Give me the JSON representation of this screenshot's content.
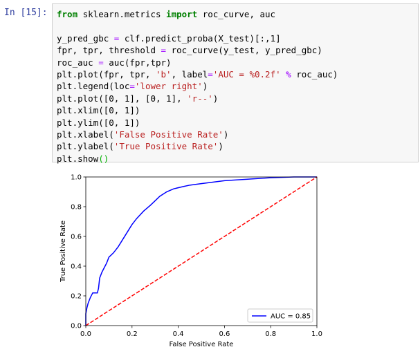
{
  "prompt": "In [15]:",
  "code": {
    "lines": [
      [
        {
          "text": "from",
          "color": "#008000",
          "bold": true
        },
        " sklearn.metrics ",
        {
          "text": "import",
          "color": "#008000",
          "bold": true
        },
        " roc_curve, auc"
      ],
      [],
      [
        "y_pred_gbc ",
        {
          "text": "=",
          "color": "#AA22FF"
        },
        " clf.predict_proba(X_test)[:,1]"
      ],
      [
        "fpr, tpr, threshold ",
        {
          "text": "=",
          "color": "#AA22FF"
        },
        " roc_curve(y_test, y_pred_gbc)"
      ],
      [
        "roc_auc ",
        {
          "text": "=",
          "color": "#AA22FF"
        },
        " auc(fpr,tpr)"
      ],
      [
        "plt.plot(fpr, tpr, ",
        {
          "text": "'b'",
          "color": "#BA2121"
        },
        ", label",
        {
          "text": "=",
          "color": "#AA22FF"
        },
        {
          "text": "'AUC = %0.2f'",
          "color": "#BA2121"
        },
        " ",
        {
          "text": "%",
          "color": "#AA22FF",
          "bold": true
        },
        " roc_auc)"
      ],
      [
        "plt.legend(loc",
        {
          "text": "=",
          "color": "#AA22FF"
        },
        {
          "text": "'lower right'",
          "color": "#BA2121"
        },
        ")"
      ],
      [
        "plt.plot([0, 1], [0, 1], ",
        {
          "text": "'r--'",
          "color": "#BA2121"
        },
        ")"
      ],
      [
        "plt.xlim([0, 1])"
      ],
      [
        "plt.ylim([0, 1])"
      ],
      [
        "plt.xlabel(",
        {
          "text": "'False Positive Rate'",
          "color": "#BA2121"
        },
        ")"
      ],
      [
        "plt.ylabel(",
        {
          "text": "'True Positive Rate'",
          "color": "#BA2121"
        },
        ")"
      ],
      [
        "plt.show",
        {
          "text": "()",
          "color": "#00b000"
        }
      ]
    ]
  },
  "chart_data": {
    "type": "line",
    "x_label": "False Positive Rate",
    "y_label": "True Positive Rate",
    "xlim": [
      0,
      1
    ],
    "ylim": [
      0,
      1
    ],
    "xticks": [
      {
        "value": 0,
        "label": "0.0"
      },
      {
        "value": 0.2,
        "label": "0.2"
      },
      {
        "value": 0.4,
        "label": "0.4"
      },
      {
        "value": 0.6,
        "label": "0.6"
      },
      {
        "value": 0.8,
        "label": "0.8"
      },
      {
        "value": 1,
        "label": "1.0"
      }
    ],
    "yticks": [
      {
        "value": 0,
        "label": "0.0"
      },
      {
        "value": 0.2,
        "label": "0.2"
      },
      {
        "value": 0.4,
        "label": "0.4"
      },
      {
        "value": 0.6,
        "label": "0.6"
      },
      {
        "value": 0.8,
        "label": "0.8"
      },
      {
        "value": 1,
        "label": "1.0"
      }
    ],
    "legend": "lower right",
    "series": [
      {
        "name": "AUC = 0.85",
        "color": "#0000ff",
        "x": [
          0,
          0,
          0.005,
          0.01,
          0.02,
          0.03,
          0.05,
          0.055,
          0.06,
          0.07,
          0.08,
          0.09,
          0.1,
          0.12,
          0.14,
          0.16,
          0.18,
          0.2,
          0.22,
          0.25,
          0.28,
          0.3,
          0.32,
          0.35,
          0.38,
          0.42,
          0.45,
          0.5,
          0.55,
          0.6,
          0.7,
          0.8,
          0.9,
          1
        ],
        "values": [
          0,
          0.08,
          0.12,
          0.15,
          0.19,
          0.22,
          0.22,
          0.25,
          0.32,
          0.36,
          0.39,
          0.42,
          0.46,
          0.49,
          0.53,
          0.58,
          0.63,
          0.68,
          0.72,
          0.77,
          0.81,
          0.84,
          0.87,
          0.9,
          0.92,
          0.935,
          0.945,
          0.955,
          0.965,
          0.975,
          0.985,
          0.995,
          1,
          1
        ]
      },
      {
        "color": "#ff0000",
        "dash": true,
        "x": [
          0,
          1
        ],
        "values": [
          0,
          1
        ]
      }
    ]
  }
}
